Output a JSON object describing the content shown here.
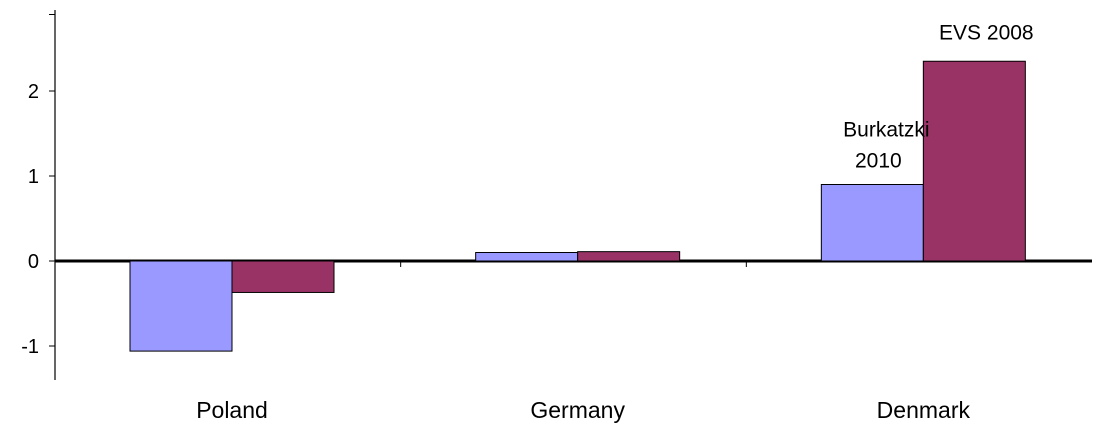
{
  "chart_data": {
    "type": "bar",
    "categories": [
      "Poland",
      "Germany",
      "Denmark"
    ],
    "series": [
      {
        "name": "Burkatzki 2010",
        "values": [
          -1.06,
          0.1,
          0.9
        ],
        "color": "#9999ff"
      },
      {
        "name": "EVS 2008",
        "values": [
          -0.37,
          0.11,
          2.35
        ],
        "color": "#993366"
      }
    ],
    "y_ticks": [
      "-1",
      "0",
      "1",
      "2"
    ],
    "ylim": [
      -1.4,
      2.9
    ],
    "xlabel": "",
    "ylabel": "",
    "grid": false,
    "legend": "series labels placed above Denmark bars"
  }
}
